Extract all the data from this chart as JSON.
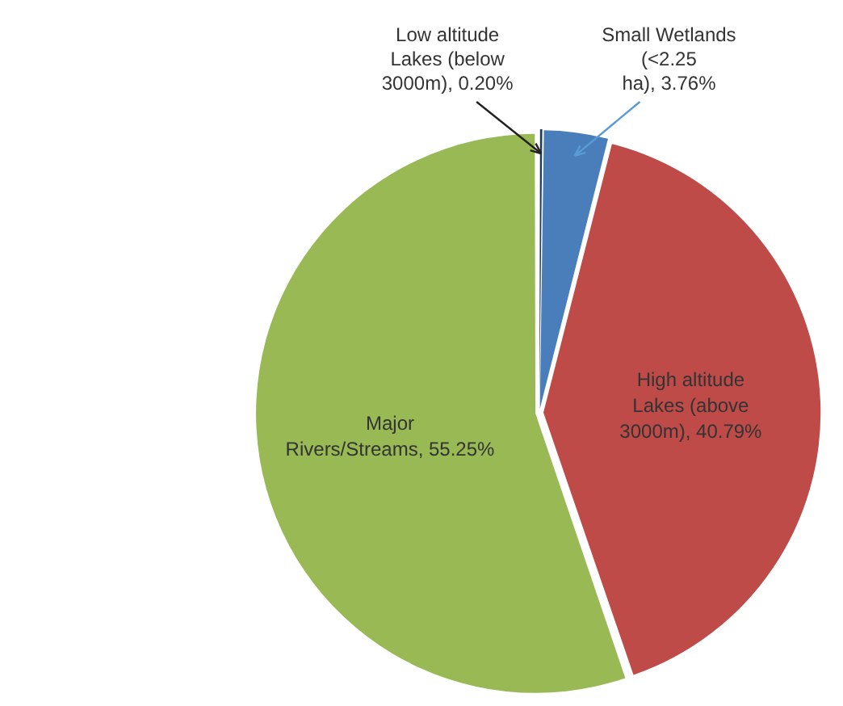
{
  "chart_data": {
    "type": "pie",
    "categories": [
      "Low altitude Lakes (below 3000m)",
      "Small Wetlands (<2.25 ha)",
      "High altitude Lakes (above 3000m)",
      "Major Rivers/Streams"
    ],
    "values": [
      0.2,
      3.76,
      40.79,
      55.25
    ],
    "value_labels": [
      "0.20%",
      "3.76%",
      "40.79%",
      "55.25%"
    ],
    "colors": [
      "#1f3a5c",
      "#4a7ebb",
      "#be4b48",
      "#98b954"
    ],
    "legend": false
  }
}
